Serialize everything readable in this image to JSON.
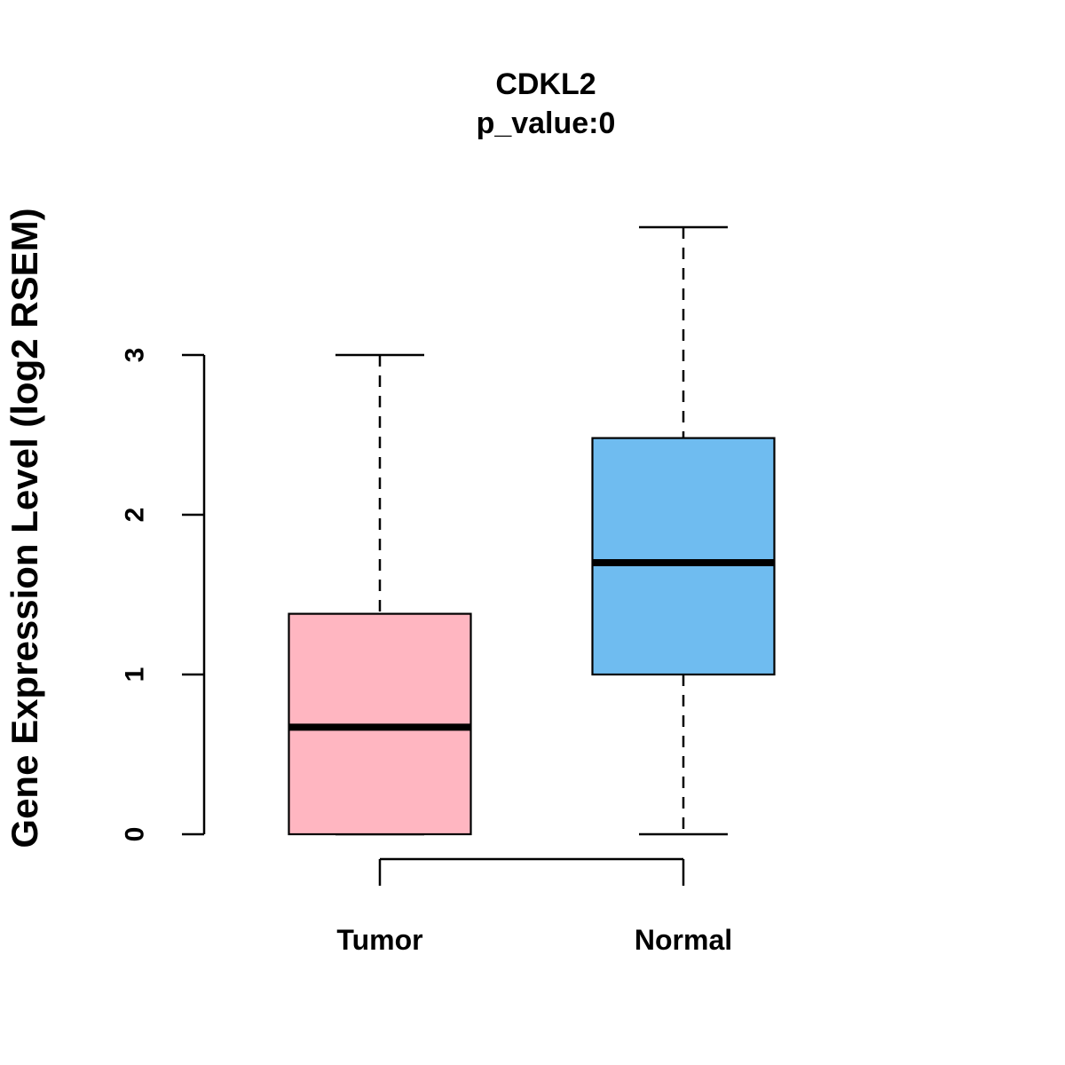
{
  "chart_data": {
    "type": "boxplot",
    "title": "CDKL2",
    "subtitle": "p_value:0",
    "ylabel": "Gene Expression Level (log2 RSEM)",
    "xlabel": "",
    "categories": [
      "Tumor",
      "Normal"
    ],
    "yticks": [
      0,
      1,
      2,
      3
    ],
    "ylim": [
      0,
      3.8
    ],
    "grid": false,
    "legend": "none",
    "series": [
      {
        "name": "Tumor",
        "color": "#FFB6C1",
        "min": 0,
        "q1": 0,
        "median": 0.67,
        "q3": 1.38,
        "max": 3.0
      },
      {
        "name": "Normal",
        "color": "#6FBCF0",
        "min": 0,
        "q1": 1.0,
        "median": 1.7,
        "q3": 2.48,
        "max": 3.8
      }
    ]
  }
}
